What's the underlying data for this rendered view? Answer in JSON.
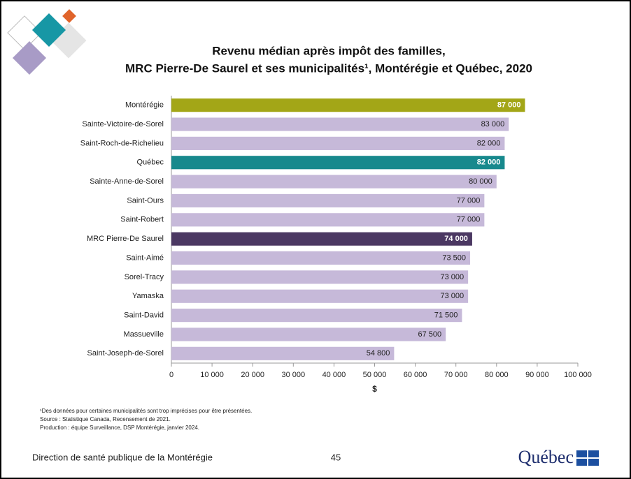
{
  "chart_data": {
    "type": "bar",
    "orientation": "horizontal",
    "title": "Revenu médian après impôt des familles,",
    "subtitle": "MRC Pierre-De Saurel et ses municipalités¹, Montérégie et Québec, 2020",
    "categories": [
      "Montérégie",
      "Sainte-Victoire-de-Sorel",
      "Saint-Roch-de-Richelieu",
      "Québec",
      "Sainte-Anne-de-Sorel",
      "Saint-Ours",
      "Saint-Robert",
      "MRC Pierre-De Saurel",
      "Saint-Aimé",
      "Sorel-Tracy",
      "Yamaska",
      "Saint-David",
      "Massueville",
      "Saint-Joseph-de-Sorel"
    ],
    "values": [
      87000,
      83000,
      82000,
      82000,
      80000,
      77000,
      77000,
      74000,
      73500,
      73000,
      73000,
      71500,
      67500,
      54800
    ],
    "value_labels": [
      "87 000",
      "83 000",
      "82 000",
      "82 000",
      "80 000",
      "77 000",
      "77 000",
      "74 000",
      "73 500",
      "73 000",
      "73 000",
      "71 500",
      "67 500",
      "54 800"
    ],
    "colors": [
      "#a3a617",
      "#c6b9d9",
      "#c6b9d9",
      "#17898d",
      "#c6b9d9",
      "#c6b9d9",
      "#c6b9d9",
      "#4b3862",
      "#c6b9d9",
      "#c6b9d9",
      "#c6b9d9",
      "#c6b9d9",
      "#c6b9d9",
      "#c6b9d9"
    ],
    "xlim": [
      0,
      100000
    ],
    "xticks": [
      0,
      {
        "value": 10000,
        "label": "10 000"
      },
      {
        "value": 20000,
        "label": "20 000"
      },
      {
        "value": 30000,
        "label": "30 000"
      },
      {
        "value": 40000,
        "label": "40 000"
      },
      {
        "value": 50000,
        "label": "50 000"
      },
      {
        "value": 60000,
        "label": "60 000"
      },
      {
        "value": 70000,
        "label": "70 000"
      },
      {
        "value": 80000,
        "label": "80 000"
      },
      {
        "value": 90000,
        "label": "90 000"
      },
      {
        "value": 100000,
        "label": "100 000"
      }
    ],
    "xlabel": "$",
    "grid": false
  },
  "footnotes": [
    "¹Des données pour certaines municipalités sont trop imprécises pour être présentées.",
    "Source : Statistique Canada,  Recensement de 2021.",
    "Production : équipe Surveillance, DSP Montérégie, janvier 2024."
  ],
  "footer": {
    "organization": "Direction de santé publique de la Montérégie",
    "page": "45",
    "logo": "Québec"
  }
}
